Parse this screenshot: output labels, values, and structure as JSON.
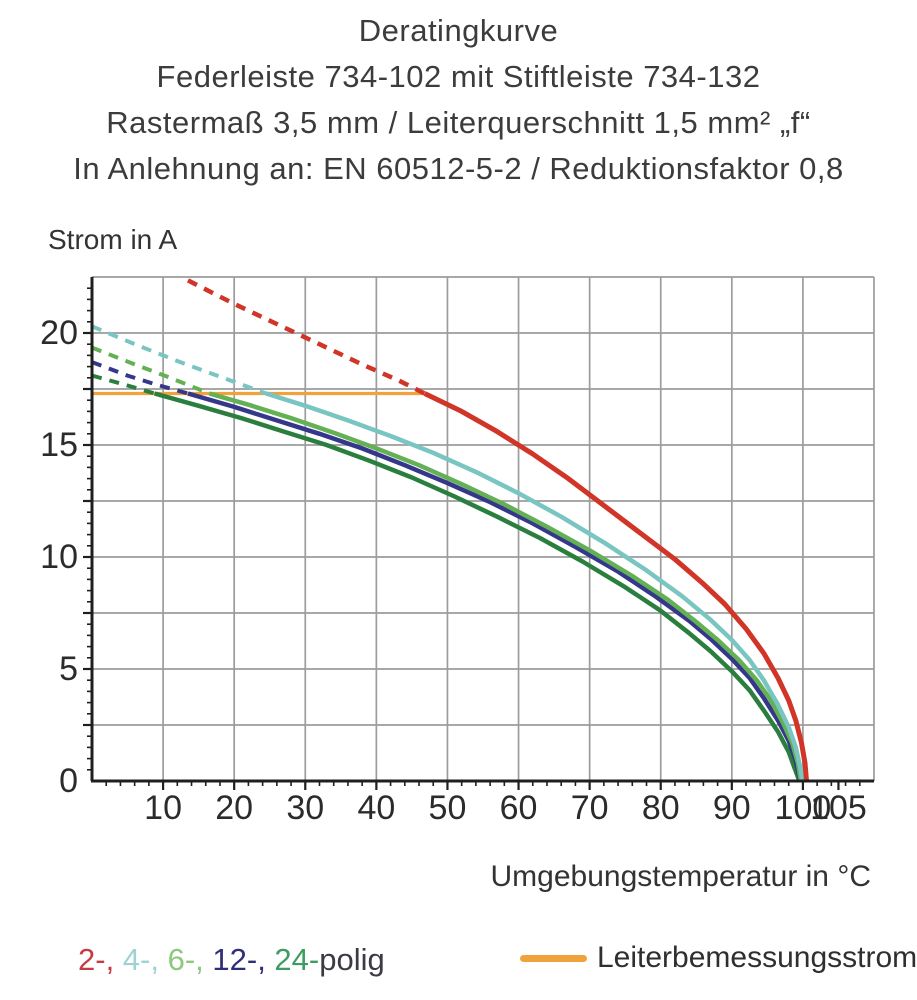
{
  "title": {
    "line1": "Deratingkurve",
    "line2": "Federleiste 734-102 mit Stiftleiste 734-132",
    "line3": "Rastermaß 3,5 mm / Leiterquerschnitt 1,5 mm² „f“",
    "line4": "In Anlehnung an: EN 60512-5-2 / Reduktionsfaktor 0,8"
  },
  "chart_data": {
    "type": "line",
    "title": "Deratingkurve",
    "xlabel": "Umgebungstemperatur in °C",
    "ylabel": "Strom in A",
    "xlim": [
      0,
      110
    ],
    "ylim": [
      0,
      22.5
    ],
    "x_tick_labels": [
      10,
      20,
      30,
      40,
      50,
      60,
      70,
      80,
      90,
      100,
      105
    ],
    "y_tick_labels": [
      0,
      5,
      10,
      15,
      20
    ],
    "x_gridline_step": 10,
    "y_gridline_step": 2.5,
    "x_minor_tick_step": 2,
    "y_minor_tick_step": 0.5,
    "grid_on": true,
    "grid_color": "#9c9c9c",
    "axis_color": "#1f1f1f",
    "tick_label_color": "#2b2b2b",
    "rated_current": {
      "label": "Leiterbemessungsstrom",
      "value": 17.3,
      "x_start": 0,
      "x_end": 46.8,
      "color": "#f0a23c"
    },
    "series": [
      {
        "name": "24-polig",
        "color": "#2b7f3e",
        "dashed": [
          [
            0,
            18.1
          ],
          [
            4,
            17.75
          ],
          [
            8.8,
            17.3
          ]
        ],
        "solid": [
          [
            8.8,
            17.3
          ],
          [
            15,
            16.75
          ],
          [
            21,
            16.2
          ],
          [
            27,
            15.6
          ],
          [
            33,
            15.0
          ],
          [
            39,
            14.3
          ],
          [
            45,
            13.55
          ],
          [
            51,
            12.7
          ],
          [
            57,
            11.8
          ],
          [
            63,
            10.85
          ],
          [
            69,
            9.8
          ],
          [
            75,
            8.65
          ],
          [
            80,
            7.6
          ],
          [
            84,
            6.6
          ],
          [
            87,
            5.8
          ],
          [
            90,
            4.9
          ],
          [
            92.5,
            4.05
          ],
          [
            94.5,
            3.15
          ],
          [
            96.5,
            2.2
          ],
          [
            98,
            1.3
          ],
          [
            98.8,
            0.6
          ],
          [
            99.5,
            0
          ]
        ]
      },
      {
        "name": "12-polig",
        "color": "#34378a",
        "dashed": [
          [
            0,
            18.7
          ],
          [
            5,
            18.1
          ],
          [
            9,
            17.7
          ],
          [
            13.5,
            17.3
          ]
        ],
        "solid": [
          [
            13.5,
            17.3
          ],
          [
            20,
            16.7
          ],
          [
            26,
            16.1
          ],
          [
            32,
            15.5
          ],
          [
            38,
            14.85
          ],
          [
            44,
            14.1
          ],
          [
            50,
            13.3
          ],
          [
            56,
            12.45
          ],
          [
            62,
            11.5
          ],
          [
            68,
            10.45
          ],
          [
            74,
            9.35
          ],
          [
            79,
            8.3
          ],
          [
            84,
            7.15
          ],
          [
            87,
            6.35
          ],
          [
            90,
            5.45
          ],
          [
            92.5,
            4.6
          ],
          [
            94.5,
            3.7
          ],
          [
            96.5,
            2.7
          ],
          [
            98,
            1.8
          ],
          [
            99,
            0.9
          ],
          [
            99.6,
            0
          ]
        ]
      },
      {
        "name": "6-polig",
        "color": "#64b054",
        "dashed": [
          [
            0,
            19.35
          ],
          [
            6,
            18.6
          ],
          [
            11,
            18.0
          ],
          [
            16.5,
            17.3
          ]
        ],
        "solid": [
          [
            16.5,
            17.3
          ],
          [
            22,
            16.8
          ],
          [
            28,
            16.2
          ],
          [
            34,
            15.55
          ],
          [
            40,
            14.85
          ],
          [
            46,
            14.1
          ],
          [
            52,
            13.25
          ],
          [
            58,
            12.35
          ],
          [
            64,
            11.35
          ],
          [
            70,
            10.3
          ],
          [
            76,
            9.15
          ],
          [
            81,
            8.1
          ],
          [
            85,
            7.1
          ],
          [
            88,
            6.3
          ],
          [
            91,
            5.4
          ],
          [
            93.5,
            4.5
          ],
          [
            95.5,
            3.6
          ],
          [
            97.2,
            2.6
          ],
          [
            98.5,
            1.7
          ],
          [
            99.3,
            0.8
          ],
          [
            99.7,
            0
          ]
        ]
      },
      {
        "name": "4-polig",
        "color": "#79c5c2",
        "dashed": [
          [
            0,
            20.3
          ],
          [
            6,
            19.5
          ],
          [
            12,
            18.75
          ],
          [
            18,
            18.05
          ],
          [
            24.5,
            17.3
          ]
        ],
        "solid": [
          [
            24.5,
            17.3
          ],
          [
            30,
            16.75
          ],
          [
            36,
            16.1
          ],
          [
            42,
            15.4
          ],
          [
            48,
            14.65
          ],
          [
            54,
            13.8
          ],
          [
            60,
            12.85
          ],
          [
            66,
            11.8
          ],
          [
            72,
            10.65
          ],
          [
            78,
            9.4
          ],
          [
            83,
            8.25
          ],
          [
            87,
            7.2
          ],
          [
            90,
            6.3
          ],
          [
            92.5,
            5.4
          ],
          [
            94.5,
            4.5
          ],
          [
            96.5,
            3.4
          ],
          [
            98,
            2.4
          ],
          [
            99,
            1.5
          ],
          [
            99.7,
            0.5
          ],
          [
            99.9,
            0
          ]
        ]
      },
      {
        "name": "2-polig",
        "color": "#d03527",
        "dashed": [
          [
            13.5,
            22.35
          ],
          [
            20,
            21.3
          ],
          [
            26,
            20.4
          ],
          [
            32,
            19.5
          ],
          [
            38,
            18.6
          ],
          [
            43,
            17.9
          ],
          [
            46.8,
            17.3
          ]
        ],
        "solid": [
          [
            46.8,
            17.3
          ],
          [
            52,
            16.5
          ],
          [
            57,
            15.6
          ],
          [
            62,
            14.6
          ],
          [
            67,
            13.5
          ],
          [
            72,
            12.3
          ],
          [
            77,
            11.1
          ],
          [
            82,
            9.9
          ],
          [
            86,
            8.8
          ],
          [
            89,
            7.9
          ],
          [
            92,
            6.8
          ],
          [
            94.5,
            5.7
          ],
          [
            96.5,
            4.6
          ],
          [
            98,
            3.6
          ],
          [
            99,
            2.7
          ],
          [
            99.8,
            1.7
          ],
          [
            100.3,
            0.8
          ],
          [
            100.5,
            0
          ]
        ]
      }
    ]
  },
  "legend": {
    "items": [
      {
        "label": "2-",
        "color": "#c63b44"
      },
      {
        "label": "4-",
        "color": "#9fd2d2"
      },
      {
        "label": "6-",
        "color": "#8cc87f"
      },
      {
        "label": "12-",
        "color": "#2e2e7a"
      },
      {
        "label": "24-",
        "color": "#3d9c5f"
      }
    ],
    "separator": ", ",
    "suffix": "polig",
    "rated_current_label": "Leiterbemessungsstrom",
    "rated_current_color": "#f0a23c"
  }
}
